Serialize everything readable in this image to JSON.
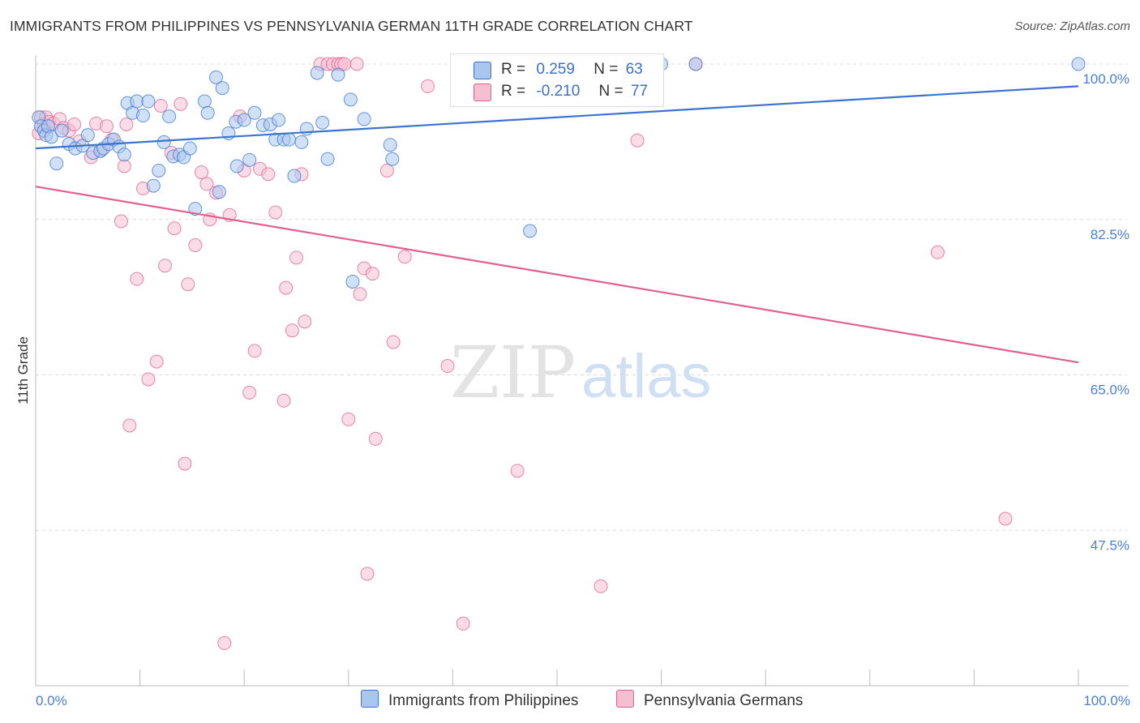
{
  "title": "IMMIGRANTS FROM PHILIPPINES VS PENNSYLVANIA GERMAN 11TH GRADE CORRELATION CHART",
  "source": "Source: ZipAtlas.com",
  "watermark": {
    "zip": "ZIP",
    "atlas": "atlas"
  },
  "colors": {
    "blue": "#3a74cf",
    "pink": "#e0608f",
    "blue_fill": "#a9c6ef",
    "pink_fill": "#f6bfd1"
  },
  "legend": {
    "blue": {
      "r_label": "R =",
      "r_value": "0.259",
      "n_label": "N =",
      "n_value": "63"
    },
    "pink": {
      "r_label": "R =",
      "r_value": "-0.210",
      "n_label": "N =",
      "n_value": "77"
    }
  },
  "chart_data": {
    "type": "scatter",
    "ylabel": "11th Grade",
    "xlabel": "",
    "xlim": [
      0,
      100
    ],
    "ylim": [
      30,
      100
    ],
    "y_ticks": [
      "100.0%",
      "82.5%",
      "65.0%",
      "47.5%"
    ],
    "y_tick_values": [
      100,
      82.5,
      65,
      47.5
    ],
    "x_tick_labels": [
      "0.0%",
      "100.0%"
    ],
    "grid": "horizontal dashed",
    "series": [
      {
        "name": "Immigrants from Philippines",
        "color": "#3a74cf",
        "trend": {
          "x": [
            0,
            100
          ],
          "y": [
            90.5,
            97.5
          ]
        },
        "points": [
          [
            0.3,
            94
          ],
          [
            0.5,
            93
          ],
          [
            0.8,
            92.5
          ],
          [
            1.0,
            92
          ],
          [
            1.2,
            93
          ],
          [
            1.5,
            91.8
          ],
          [
            2.0,
            88.8
          ],
          [
            2.5,
            92.5
          ],
          [
            3.2,
            91
          ],
          [
            3.8,
            90.5
          ],
          [
            4.5,
            90.8
          ],
          [
            5.0,
            92
          ],
          [
            5.5,
            90
          ],
          [
            6.2,
            90.2
          ],
          [
            6.5,
            90.5
          ],
          [
            7.0,
            91
          ],
          [
            7.5,
            91.5
          ],
          [
            8.0,
            90.7
          ],
          [
            8.5,
            89.8
          ],
          [
            8.8,
            95.6
          ],
          [
            9.3,
            94.5
          ],
          [
            9.7,
            95.8
          ],
          [
            10.3,
            94.2
          ],
          [
            10.8,
            95.8
          ],
          [
            11.3,
            86.3
          ],
          [
            11.8,
            88
          ],
          [
            12.3,
            91.2
          ],
          [
            12.8,
            94.1
          ],
          [
            13.2,
            89.6
          ],
          [
            13.8,
            89.8
          ],
          [
            14.2,
            89.5
          ],
          [
            14.8,
            90.5
          ],
          [
            15.3,
            83.7
          ],
          [
            16.2,
            95.8
          ],
          [
            16.5,
            94.5
          ],
          [
            17.3,
            98.5
          ],
          [
            17.6,
            85.6
          ],
          [
            17.9,
            97.3
          ],
          [
            18.5,
            92.2
          ],
          [
            19.2,
            93.5
          ],
          [
            19.3,
            88.5
          ],
          [
            20.0,
            93.7
          ],
          [
            20.5,
            89.2
          ],
          [
            21.0,
            94.5
          ],
          [
            21.8,
            93.1
          ],
          [
            22.5,
            93.2
          ],
          [
            23.0,
            91.5
          ],
          [
            23.3,
            93.7
          ],
          [
            23.8,
            91.5
          ],
          [
            24.3,
            91.5
          ],
          [
            24.8,
            87.4
          ],
          [
            25.5,
            91.2
          ],
          [
            26.0,
            92.7
          ],
          [
            27.0,
            99
          ],
          [
            27.5,
            93.4
          ],
          [
            28.0,
            89.3
          ],
          [
            29.0,
            98.8
          ],
          [
            30.2,
            96
          ],
          [
            30.4,
            75.5
          ],
          [
            31.5,
            93.8
          ],
          [
            34.0,
            90.9
          ],
          [
            34.2,
            89.3
          ],
          [
            47.4,
            81.2
          ],
          [
            60.0,
            100
          ],
          [
            63.3,
            100
          ],
          [
            100,
            100
          ]
        ]
      },
      {
        "name": "Pennsylvania Germans",
        "color": "#e0608f",
        "trend": {
          "x": [
            0,
            100
          ],
          "y": [
            86.2,
            66.4
          ]
        },
        "points": [
          [
            0.3,
            92.2
          ],
          [
            0.5,
            94
          ],
          [
            0.8,
            93.2
          ],
          [
            1.0,
            94
          ],
          [
            1.3,
            93.5
          ],
          [
            1.7,
            93.3
          ],
          [
            2.3,
            93.8
          ],
          [
            2.7,
            92.8
          ],
          [
            3.2,
            92.5
          ],
          [
            3.7,
            93.2
          ],
          [
            4.2,
            91.3
          ],
          [
            5.3,
            89.5
          ],
          [
            5.8,
            93.3
          ],
          [
            6.3,
            90.3
          ],
          [
            6.8,
            93
          ],
          [
            7.3,
            91.5
          ],
          [
            8.2,
            82.3
          ],
          [
            8.5,
            88.5
          ],
          [
            8.7,
            93.2
          ],
          [
            9.0,
            59.3
          ],
          [
            9.7,
            75.8
          ],
          [
            10.3,
            86
          ],
          [
            10.8,
            64.5
          ],
          [
            11.6,
            66.5
          ],
          [
            12.0,
            95.3
          ],
          [
            12.4,
            77.3
          ],
          [
            13.0,
            90
          ],
          [
            13.3,
            81.5
          ],
          [
            13.9,
            95.5
          ],
          [
            14.3,
            55
          ],
          [
            14.6,
            75.2
          ],
          [
            15.3,
            79.6
          ],
          [
            15.9,
            87.8
          ],
          [
            16.4,
            86.5
          ],
          [
            16.7,
            82.5
          ],
          [
            17.3,
            85.5
          ],
          [
            18.1,
            34.8
          ],
          [
            18.6,
            83
          ],
          [
            19.6,
            94.1
          ],
          [
            20.0,
            88
          ],
          [
            20.5,
            63
          ],
          [
            21.0,
            67.7
          ],
          [
            21.5,
            88.2
          ],
          [
            22.3,
            87.6
          ],
          [
            23.0,
            83.3
          ],
          [
            23.8,
            62.1
          ],
          [
            24.0,
            74.8
          ],
          [
            24.6,
            70
          ],
          [
            25.0,
            78.2
          ],
          [
            25.5,
            87.6
          ],
          [
            25.8,
            71
          ],
          [
            27.3,
            100
          ],
          [
            28.0,
            100
          ],
          [
            28.5,
            100
          ],
          [
            29.0,
            100
          ],
          [
            29.3,
            100
          ],
          [
            29.6,
            100
          ],
          [
            30.0,
            60
          ],
          [
            30.8,
            100
          ],
          [
            31.1,
            74.1
          ],
          [
            31.5,
            77
          ],
          [
            31.8,
            42.6
          ],
          [
            32.3,
            76.4
          ],
          [
            32.6,
            57.8
          ],
          [
            33.7,
            88
          ],
          [
            34.3,
            68.7
          ],
          [
            35.4,
            78.3
          ],
          [
            37.6,
            97.5
          ],
          [
            39.5,
            66
          ],
          [
            41.0,
            37
          ],
          [
            42.0,
            100
          ],
          [
            46.2,
            54.2
          ],
          [
            47.0,
            100
          ],
          [
            54.2,
            41.2
          ],
          [
            57.7,
            91.4
          ],
          [
            63.3,
            100
          ],
          [
            86.5,
            78.8
          ],
          [
            93.0,
            48.8
          ]
        ]
      }
    ]
  },
  "bottom_legend": {
    "blue_label": "Immigrants from Philippines",
    "pink_label": "Pennsylvania Germans"
  }
}
